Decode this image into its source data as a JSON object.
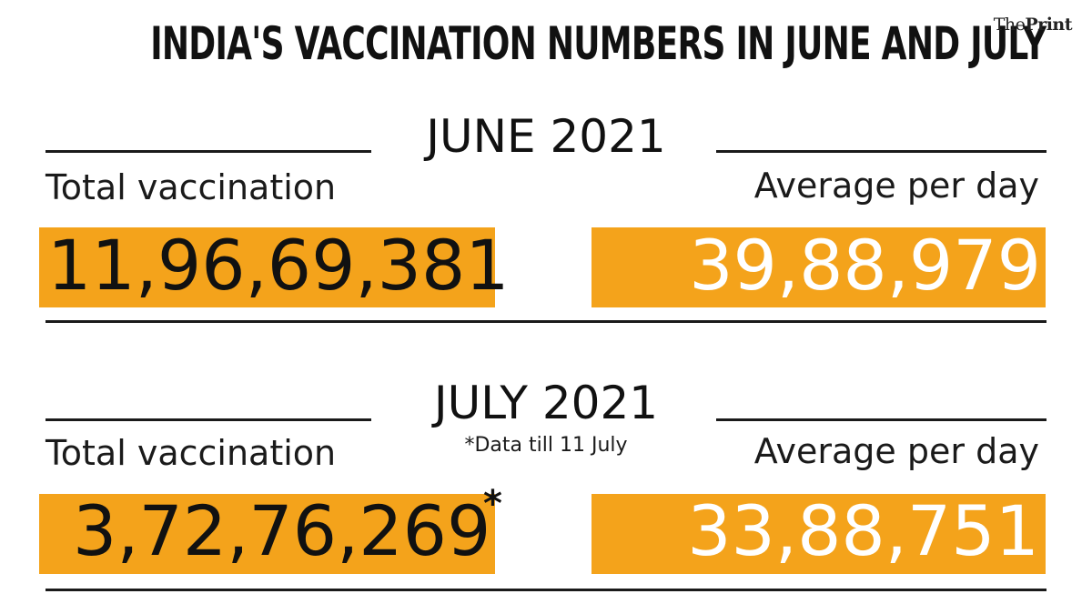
{
  "header": {
    "title": "INDIA'S VACCINATION NUMBERS IN JUNE AND JULY",
    "brand_prefix": "The",
    "brand_name": "Print"
  },
  "june": {
    "heading": "JUNE 2021",
    "total_label": "Total vaccination",
    "total_value": "11,96,69,381",
    "average_label": "Average per day",
    "average_value": "39,88,979"
  },
  "july": {
    "heading": "JULY 2021",
    "note": "*Data till 11 July",
    "total_label": "Total vaccination",
    "total_value": "3,72,76,269",
    "total_marker": "*",
    "average_label": "Average per day",
    "average_value": "33,88,751"
  },
  "colors": {
    "accent": "#f4a31b",
    "text": "#111111",
    "light_text": "#ffffff"
  }
}
